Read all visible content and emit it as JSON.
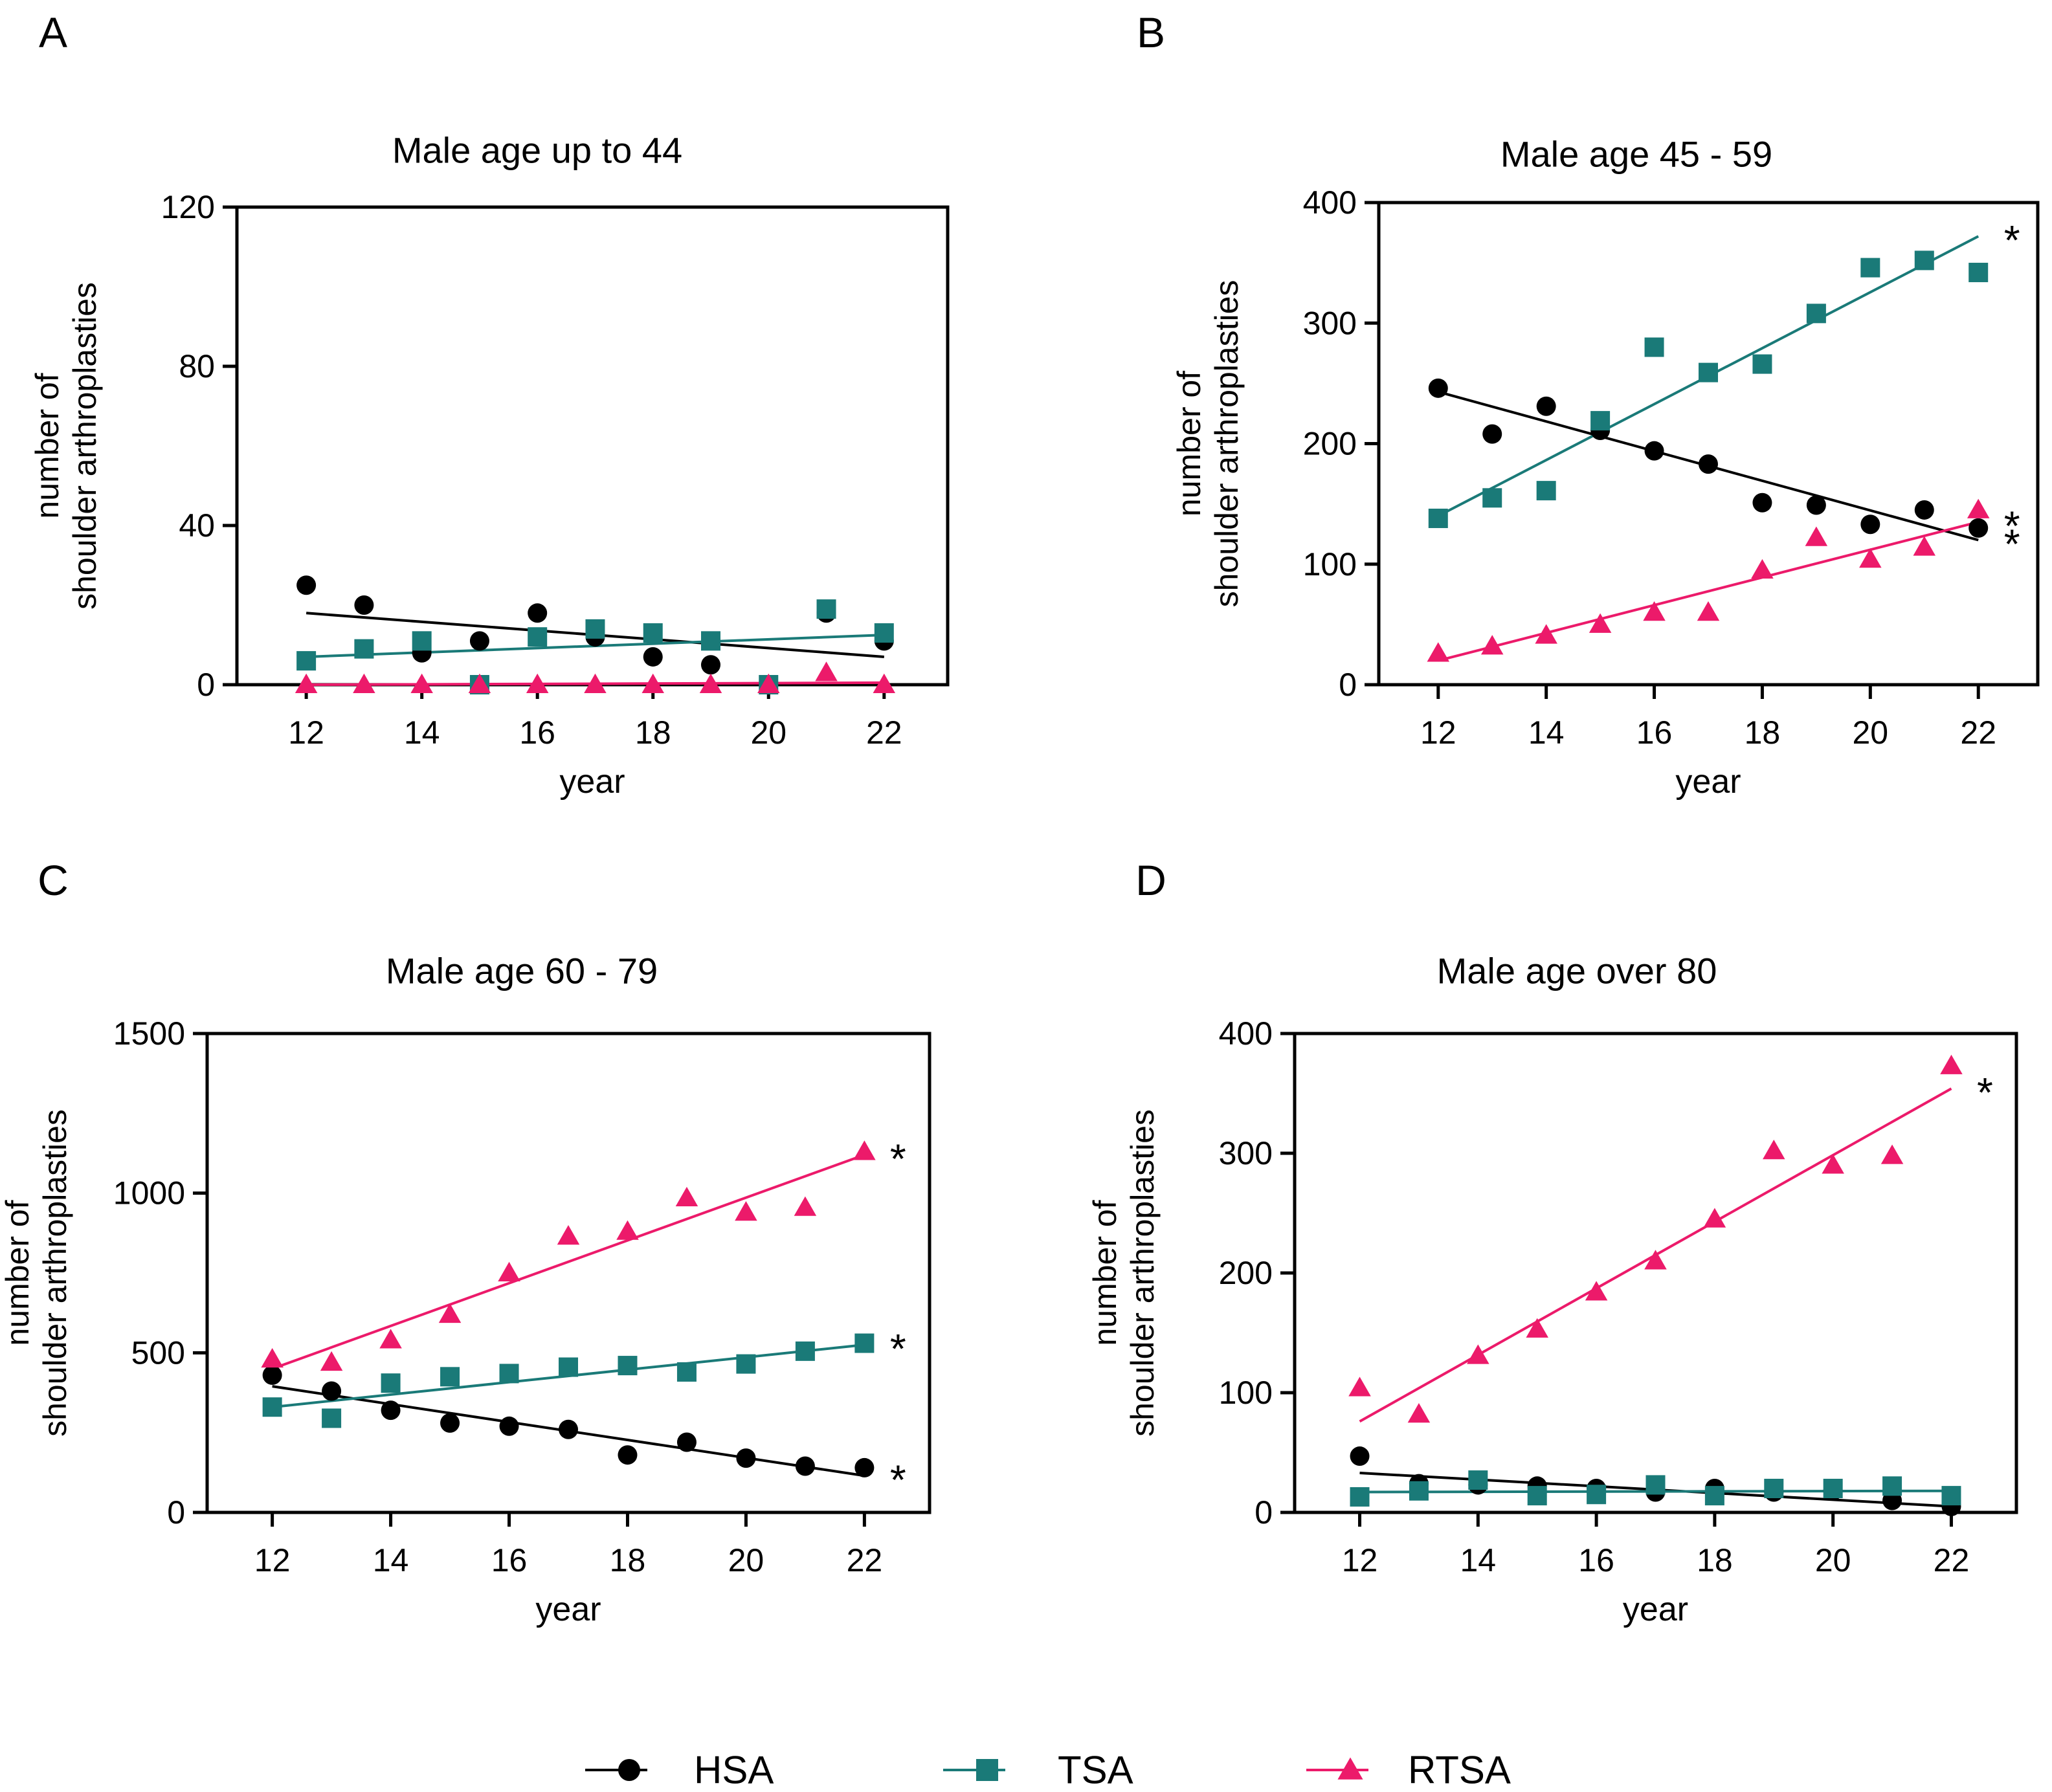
{
  "series_styles": [
    {
      "key": "HSA",
      "name": "HSA",
      "marker": "circle",
      "color": "#000000"
    },
    {
      "key": "TSA",
      "name": "TSA",
      "marker": "square",
      "color": "#1a7a78"
    },
    {
      "key": "RTSA",
      "name": "RTSA",
      "marker": "triangle",
      "color": "#ec1a6a"
    }
  ],
  "legend": {
    "entries": [
      "HSA",
      "TSA",
      "RTSA"
    ]
  },
  "chart_data": [
    {
      "panel": "A",
      "type": "scatter",
      "title": "Male age up to 44",
      "xlabel": "year",
      "ylabel": [
        "number of",
        "shoulder arthroplasties"
      ],
      "xlim": [
        10.8,
        23.1
      ],
      "ylim": [
        0,
        120
      ],
      "xticks": [
        12,
        14,
        16,
        18,
        20,
        22
      ],
      "yticks": [
        0,
        40,
        80,
        120
      ],
      "x": [
        12,
        13,
        14,
        15,
        16,
        17,
        18,
        19,
        20,
        21,
        22
      ],
      "series": [
        {
          "name": "HSA",
          "values": [
            25,
            20,
            8,
            11,
            18,
            12,
            7,
            5,
            0,
            18,
            11
          ],
          "trend": [
            18,
            7
          ],
          "asterisk": ""
        },
        {
          "name": "TSA",
          "values": [
            6,
            9,
            11,
            0,
            12,
            14,
            13,
            11,
            0,
            19,
            13
          ],
          "trend": [
            7,
            12.5
          ],
          "asterisk": ""
        },
        {
          "name": "RTSA",
          "values": [
            0,
            0,
            0,
            0,
            0,
            0,
            0,
            0,
            0,
            3,
            0
          ],
          "trend": [
            0,
            0.5
          ],
          "asterisk": ""
        }
      ]
    },
    {
      "panel": "B",
      "type": "scatter",
      "title": "Male age 45 - 59",
      "xlabel": "year",
      "ylabel": [
        "number of",
        "shoulder arthroplasties"
      ],
      "xlim": [
        10.9,
        23.1
      ],
      "ylim": [
        0,
        400
      ],
      "xticks": [
        12,
        14,
        16,
        18,
        20,
        22
      ],
      "yticks": [
        0,
        100,
        200,
        300,
        400
      ],
      "x": [
        12,
        13,
        14,
        15,
        16,
        17,
        18,
        19,
        20,
        21,
        22
      ],
      "series": [
        {
          "name": "HSA",
          "values": [
            246,
            208,
            231,
            211,
            194,
            183,
            151,
            149,
            133,
            145,
            130
          ],
          "trend": [
            243,
            120
          ],
          "asterisk": "*"
        },
        {
          "name": "TSA",
          "values": [
            138,
            155,
            161,
            219,
            280,
            259,
            266,
            308,
            346,
            352,
            342
          ],
          "trend": [
            140,
            372
          ],
          "asterisk": "*"
        },
        {
          "name": "RTSA",
          "values": [
            26,
            32,
            41,
            50,
            60,
            60,
            95,
            122,
            104,
            114,
            145
          ],
          "trend": [
            20,
            135
          ],
          "asterisk": "*"
        }
      ]
    },
    {
      "panel": "C",
      "type": "scatter",
      "title": "Male age 60 - 79",
      "xlabel": "year",
      "ylabel": [
        "number of",
        "shoulder arthroplasties"
      ],
      "xlim": [
        10.9,
        23.1
      ],
      "ylim": [
        0,
        1500
      ],
      "xticks": [
        12,
        14,
        16,
        18,
        20,
        22
      ],
      "yticks": [
        0,
        500,
        1000,
        1500
      ],
      "x": [
        12,
        13,
        14,
        15,
        16,
        17,
        18,
        19,
        20,
        21,
        22
      ],
      "series": [
        {
          "name": "HSA",
          "values": [
            430,
            380,
            320,
            280,
            270,
            260,
            180,
            220,
            170,
            145,
            140
          ],
          "trend": [
            395,
            115
          ],
          "asterisk": "*"
        },
        {
          "name": "TSA",
          "values": [
            330,
            295,
            405,
            425,
            435,
            455,
            460,
            440,
            465,
            505,
            530
          ],
          "trend": [
            330,
            525
          ],
          "asterisk": "*"
        },
        {
          "name": "RTSA",
          "values": [
            480,
            470,
            540,
            620,
            750,
            865,
            880,
            985,
            940,
            955,
            1130
          ],
          "trend": [
            450,
            1120
          ],
          "asterisk": "*"
        }
      ]
    },
    {
      "panel": "D",
      "type": "scatter",
      "title": "Male age over 80",
      "xlabel": "year",
      "ylabel": [
        "number of",
        "shoulder arthroplasties"
      ],
      "xlim": [
        10.9,
        23.1
      ],
      "ylim": [
        0,
        400
      ],
      "xticks": [
        12,
        14,
        16,
        18,
        20,
        22
      ],
      "yticks": [
        0,
        100,
        200,
        300,
        400
      ],
      "x": [
        12,
        13,
        14,
        15,
        16,
        17,
        18,
        19,
        20,
        21,
        22
      ],
      "series": [
        {
          "name": "HSA",
          "values": [
            47,
            24,
            23,
            22,
            20,
            17,
            20,
            17,
            18,
            10,
            5
          ],
          "trend": [
            33,
            5
          ],
          "asterisk": ""
        },
        {
          "name": "TSA",
          "values": [
            13,
            18,
            27,
            14,
            15,
            23,
            14,
            20,
            20,
            22,
            14
          ],
          "trend": [
            17,
            18
          ],
          "asterisk": ""
        },
        {
          "name": "RTSA",
          "values": [
            104,
            82,
            131,
            153,
            184,
            210,
            245,
            302,
            290,
            298,
            373
          ],
          "trend": [
            76,
            354
          ],
          "asterisk": "*"
        }
      ]
    }
  ]
}
